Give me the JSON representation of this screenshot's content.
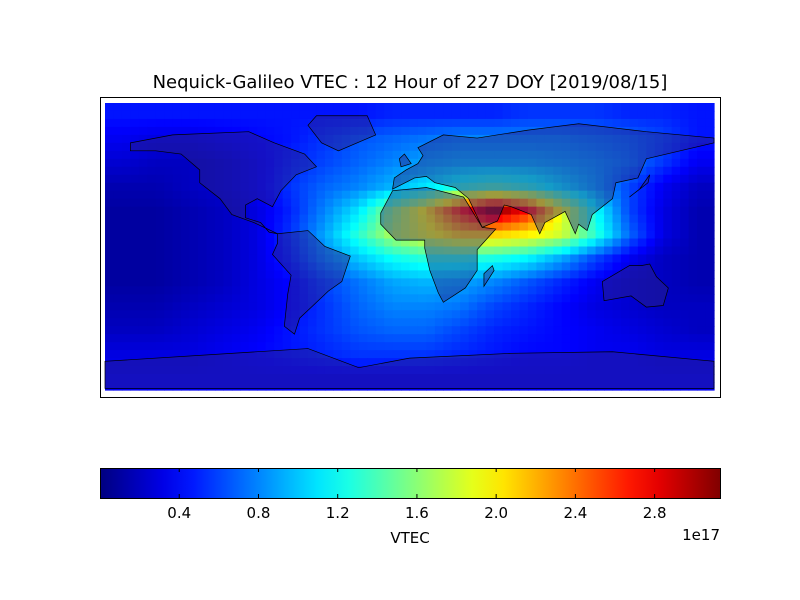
{
  "title": "Nequick-Galileo VTEC : 12 Hour of 227 DOY [2019/08/15]",
  "colorbar": {
    "label": "VTEC",
    "exponent": "1e17",
    "ticks": [
      "0.4",
      "0.8",
      "1.2",
      "1.6",
      "2.0",
      "2.4",
      "2.8"
    ],
    "range": [
      0,
      3.13
    ],
    "colormap": "jet"
  },
  "chart_data": {
    "type": "heatmap",
    "title": "Nequick-Galileo VTEC : 12 Hour of 227 DOY [2019/08/15]",
    "projection": "cylindrical world map with coastlines and country borders",
    "value_unit_multiplier": "1e17",
    "lon": [
      -170,
      -150,
      -130,
      -110,
      -90,
      -70,
      -50,
      -30,
      -10,
      10,
      30,
      50,
      70,
      90,
      110,
      130,
      150,
      170
    ],
    "lat": [
      82.5,
      67.5,
      52.5,
      37.5,
      22.5,
      7.5,
      -7.5,
      -22.5,
      -37.5,
      -52.5,
      -67.5,
      -82.5
    ],
    "values": [
      [
        0.45,
        0.45,
        0.45,
        0.45,
        0.45,
        0.45,
        0.45,
        0.45,
        0.5,
        0.5,
        0.5,
        0.5,
        0.55,
        0.55,
        0.55,
        0.5,
        0.5,
        0.45
      ],
      [
        0.35,
        0.3,
        0.3,
        0.35,
        0.4,
        0.45,
        0.55,
        0.65,
        0.7,
        0.75,
        0.8,
        0.8,
        0.8,
        0.8,
        0.75,
        0.7,
        0.6,
        0.45
      ],
      [
        0.25,
        0.2,
        0.2,
        0.25,
        0.35,
        0.5,
        0.6,
        0.7,
        0.8,
        0.9,
        0.95,
        0.95,
        0.95,
        0.9,
        0.85,
        0.75,
        0.55,
        0.35
      ],
      [
        0.15,
        0.15,
        0.2,
        0.25,
        0.35,
        0.55,
        0.7,
        0.8,
        0.95,
        1.1,
        1.3,
        1.4,
        1.3,
        1.1,
        0.9,
        0.6,
        0.35,
        0.2
      ],
      [
        0.1,
        0.1,
        0.15,
        0.2,
        0.3,
        0.5,
        0.8,
        1.1,
        1.6,
        2.0,
        2.6,
        3.1,
        2.7,
        1.9,
        1.2,
        0.6,
        0.3,
        0.15
      ],
      [
        0.1,
        0.1,
        0.15,
        0.2,
        0.3,
        0.55,
        0.9,
        1.3,
        1.7,
        1.9,
        2.1,
        2.1,
        2.0,
        1.8,
        1.3,
        0.7,
        0.3,
        0.15
      ],
      [
        0.1,
        0.1,
        0.15,
        0.2,
        0.3,
        0.5,
        0.8,
        1.0,
        1.2,
        1.3,
        1.3,
        1.25,
        1.15,
        0.9,
        0.6,
        0.35,
        0.2,
        0.15
      ],
      [
        0.1,
        0.1,
        0.15,
        0.2,
        0.3,
        0.4,
        0.6,
        0.75,
        0.9,
        0.95,
        0.9,
        0.8,
        0.65,
        0.5,
        0.35,
        0.25,
        0.2,
        0.15
      ],
      [
        0.15,
        0.15,
        0.2,
        0.25,
        0.3,
        0.4,
        0.55,
        0.7,
        0.8,
        0.8,
        0.75,
        0.6,
        0.5,
        0.4,
        0.3,
        0.25,
        0.2,
        0.2
      ],
      [
        0.2,
        0.2,
        0.25,
        0.3,
        0.35,
        0.45,
        0.55,
        0.65,
        0.7,
        0.7,
        0.6,
        0.5,
        0.45,
        0.4,
        0.35,
        0.3,
        0.25,
        0.2
      ],
      [
        0.3,
        0.3,
        0.3,
        0.35,
        0.4,
        0.45,
        0.5,
        0.55,
        0.55,
        0.55,
        0.5,
        0.45,
        0.4,
        0.4,
        0.35,
        0.35,
        0.3,
        0.3
      ],
      [
        0.35,
        0.35,
        0.35,
        0.35,
        0.35,
        0.35,
        0.35,
        0.35,
        0.35,
        0.35,
        0.35,
        0.35,
        0.35,
        0.35,
        0.35,
        0.35,
        0.35,
        0.35
      ]
    ],
    "colorbar_label": "VTEC",
    "colorbar_ticks": [
      0.4,
      0.8,
      1.2,
      1.6,
      2.0,
      2.4,
      2.8
    ]
  }
}
